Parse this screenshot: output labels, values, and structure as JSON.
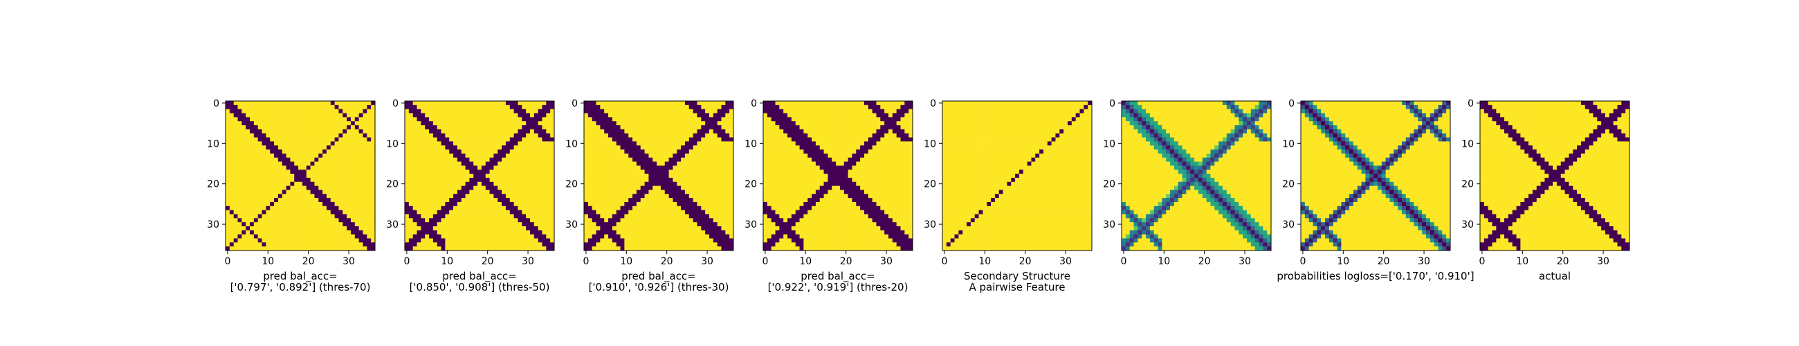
{
  "colors": {
    "low": "#440154",
    "high": "#fde725",
    "axis": "#000000"
  },
  "chart_data": [
    {
      "type": "heatmap",
      "size": 37,
      "colormap": "viridis",
      "pattern": "binary-bal",
      "thres": 0.7,
      "xticks": [
        0,
        10,
        20,
        30
      ],
      "yticks": [
        0,
        10,
        20,
        30
      ],
      "xlabel_lines": [
        "pred bal_acc=",
        "['0.797', '0.892'] (thres-70)"
      ]
    },
    {
      "type": "heatmap",
      "size": 37,
      "colormap": "viridis",
      "pattern": "binary-bal",
      "thres": 0.5,
      "xticks": [
        0,
        10,
        20,
        30
      ],
      "yticks": [
        0,
        10,
        20,
        30
      ],
      "xlabel_lines": [
        "pred bal_acc=",
        "['0.850', '0.908'] (thres-50)"
      ]
    },
    {
      "type": "heatmap",
      "size": 37,
      "colormap": "viridis",
      "pattern": "binary-bal",
      "thres": 0.3,
      "xticks": [
        0,
        10,
        20,
        30
      ],
      "yticks": [
        0,
        10,
        20,
        30
      ],
      "xlabel_lines": [
        "pred bal_acc=",
        "['0.910', '0.926'] (thres-30)"
      ]
    },
    {
      "type": "heatmap",
      "size": 37,
      "colormap": "viridis",
      "pattern": "binary-bal",
      "thres": 0.2,
      "xticks": [
        0,
        10,
        20,
        30
      ],
      "yticks": [
        0,
        10,
        20,
        30
      ],
      "xlabel_lines": [
        "pred bal_acc=",
        "['0.922', '0.919'] (thres-20)"
      ]
    },
    {
      "type": "heatmap",
      "size": 37,
      "colormap": "viridis",
      "pattern": "secondary",
      "xticks": [
        0,
        10,
        20,
        30
      ],
      "yticks": [
        0,
        10,
        20,
        30
      ],
      "xlabel_lines": [
        "Secondary Structure",
        "A pairwise Feature"
      ]
    },
    {
      "type": "heatmap",
      "size": 37,
      "colormap": "viridis",
      "pattern": "pairwise-feature",
      "xticks": [
        0,
        10,
        20,
        30
      ],
      "yticks": [
        0,
        10,
        20,
        30
      ],
      "xlabel_lines": [
        "",
        ""
      ]
    },
    {
      "type": "heatmap",
      "size": 37,
      "colormap": "viridis",
      "pattern": "probabilities",
      "xticks": [
        0,
        10,
        20,
        30
      ],
      "yticks": [
        0,
        10,
        20,
        30
      ],
      "xlabel_lines": [
        "probabilities logloss=['0.170', '0.910']"
      ]
    },
    {
      "type": "heatmap",
      "size": 37,
      "colormap": "viridis",
      "pattern": "actual",
      "xticks": [
        0,
        10,
        20,
        30
      ],
      "yticks": [
        0,
        10,
        20,
        30
      ],
      "xlabel_lines": [
        "actual"
      ]
    }
  ]
}
